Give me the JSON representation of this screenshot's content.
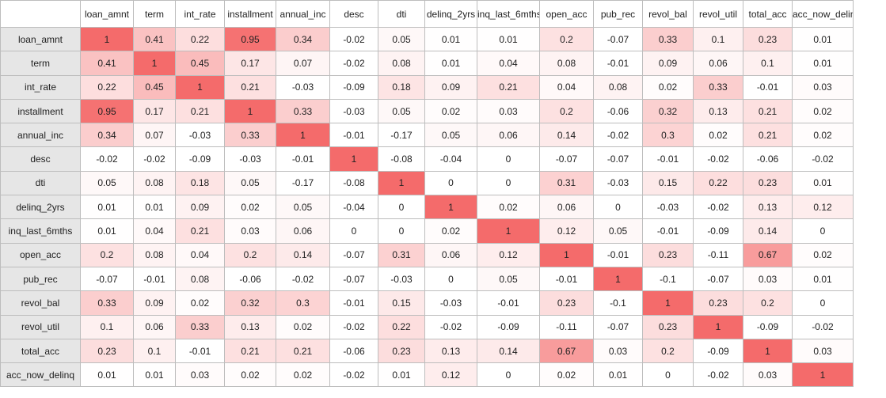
{
  "chart_data": {
    "type": "heatmap",
    "variables": [
      "loan_amnt",
      "term",
      "int_rate",
      "installment",
      "annual_inc",
      "desc",
      "dti",
      "delinq_2yrs",
      "inq_last_6mths",
      "open_acc",
      "pub_rec",
      "revol_bal",
      "revol_util",
      "total_acc",
      "acc_now_delinq"
    ],
    "values": [
      [
        1,
        0.41,
        0.22,
        0.95,
        0.34,
        -0.02,
        0.05,
        0.01,
        0.01,
        0.2,
        -0.07,
        0.33,
        0.1,
        0.23,
        0.01
      ],
      [
        0.41,
        1,
        0.45,
        0.17,
        0.07,
        -0.02,
        0.08,
        0.01,
        0.04,
        0.08,
        -0.01,
        0.09,
        0.06,
        0.1,
        0.01
      ],
      [
        0.22,
        0.45,
        1,
        0.21,
        -0.03,
        -0.09,
        0.18,
        0.09,
        0.21,
        0.04,
        0.08,
        0.02,
        0.33,
        -0.01,
        0.03
      ],
      [
        0.95,
        0.17,
        0.21,
        1,
        0.33,
        -0.03,
        0.05,
        0.02,
        0.03,
        0.2,
        -0.06,
        0.32,
        0.13,
        0.21,
        0.02
      ],
      [
        0.34,
        0.07,
        -0.03,
        0.33,
        1,
        -0.01,
        -0.17,
        0.05,
        0.06,
        0.14,
        -0.02,
        0.3,
        0.02,
        0.21,
        0.02
      ],
      [
        -0.02,
        -0.02,
        -0.09,
        -0.03,
        -0.01,
        1,
        -0.08,
        -0.04,
        0,
        -0.07,
        -0.07,
        -0.01,
        -0.02,
        -0.06,
        -0.02
      ],
      [
        0.05,
        0.08,
        0.18,
        0.05,
        -0.17,
        -0.08,
        1,
        0,
        0,
        0.31,
        -0.03,
        0.15,
        0.22,
        0.23,
        0.01
      ],
      [
        0.01,
        0.01,
        0.09,
        0.02,
        0.05,
        -0.04,
        0,
        1,
        0.02,
        0.06,
        0,
        -0.03,
        -0.02,
        0.13,
        0.12
      ],
      [
        0.01,
        0.04,
        0.21,
        0.03,
        0.06,
        0,
        0,
        0.02,
        1,
        0.12,
        0.05,
        -0.01,
        -0.09,
        0.14,
        0
      ],
      [
        0.2,
        0.08,
        0.04,
        0.2,
        0.14,
        -0.07,
        0.31,
        0.06,
        0.12,
        1,
        -0.01,
        0.23,
        -0.11,
        0.67,
        0.02
      ],
      [
        -0.07,
        -0.01,
        0.08,
        -0.06,
        -0.02,
        -0.07,
        -0.03,
        0,
        0.05,
        -0.01,
        1,
        -0.1,
        -0.07,
        0.03,
        0.01
      ],
      [
        0.33,
        0.09,
        0.02,
        0.32,
        0.3,
        -0.01,
        0.15,
        -0.03,
        -0.01,
        0.23,
        -0.1,
        1,
        0.23,
        0.2,
        0
      ],
      [
        0.1,
        0.06,
        0.33,
        0.13,
        0.02,
        -0.02,
        0.22,
        -0.02,
        -0.09,
        -0.11,
        -0.07,
        0.23,
        1,
        -0.09,
        -0.02
      ],
      [
        0.23,
        0.1,
        -0.01,
        0.21,
        0.21,
        -0.06,
        0.23,
        0.13,
        0.14,
        0.67,
        0.03,
        0.2,
        -0.09,
        1,
        0.03
      ],
      [
        0.01,
        0.01,
        0.03,
        0.02,
        0.02,
        -0.02,
        0.01,
        0.12,
        0,
        0.02,
        0.01,
        0,
        -0.02,
        0.03,
        1
      ]
    ],
    "color_scale": {
      "low": "#ffffff",
      "high": "#f46b6b",
      "header_bg": "#e6e6e6",
      "grid": "#bdbdbd"
    }
  }
}
